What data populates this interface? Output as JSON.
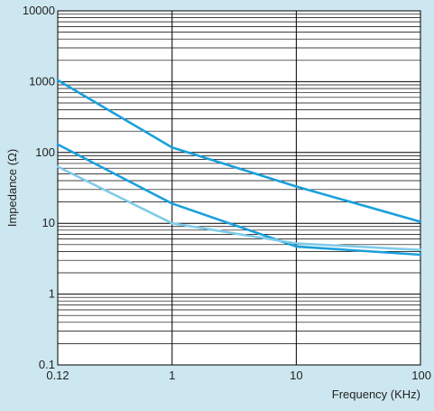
{
  "chart_data": {
    "type": "line",
    "title": "",
    "xlabel": "Frequency (KHz)",
    "ylabel": "Impedance (Ω)",
    "x_scale": "log",
    "y_scale": "log",
    "xlim": [
      0.12,
      100
    ],
    "ylim": [
      0.1,
      10000
    ],
    "x_ticks": [
      {
        "value": 0.12,
        "label": "0.12"
      },
      {
        "value": 1,
        "label": "1"
      },
      {
        "value": 10,
        "label": "10"
      },
      {
        "value": 100,
        "label": "100"
      }
    ],
    "y_ticks": [
      {
        "value": 0.1,
        "label": "0.1"
      },
      {
        "value": 1,
        "label": "1"
      },
      {
        "value": 10,
        "label": "10"
      },
      {
        "value": 100,
        "label": "100"
      },
      {
        "value": 1000,
        "label": "1000"
      },
      {
        "value": 10000,
        "label": "10000"
      }
    ],
    "grid": true,
    "legend": "none",
    "colors": {
      "background": "#cde7f0",
      "plot_background": "#ffffff",
      "grid": "#000000",
      "series_dark": "#1aa0dc",
      "series_light": "#7fcbe8"
    },
    "series": [
      {
        "color": "#1aa0dc",
        "x": [
          0.12,
          1,
          10,
          100
        ],
        "y": [
          1050,
          118,
          33,
          10.5
        ]
      },
      {
        "color": "#1aa0dc",
        "x": [
          0.12,
          1,
          10,
          100
        ],
        "y": [
          130,
          19,
          4.7,
          3.6
        ]
      },
      {
        "color": "#7fcbe8",
        "x": [
          0.12,
          1,
          10,
          100
        ],
        "y": [
          63,
          10,
          5.2,
          4.2
        ]
      }
    ]
  }
}
